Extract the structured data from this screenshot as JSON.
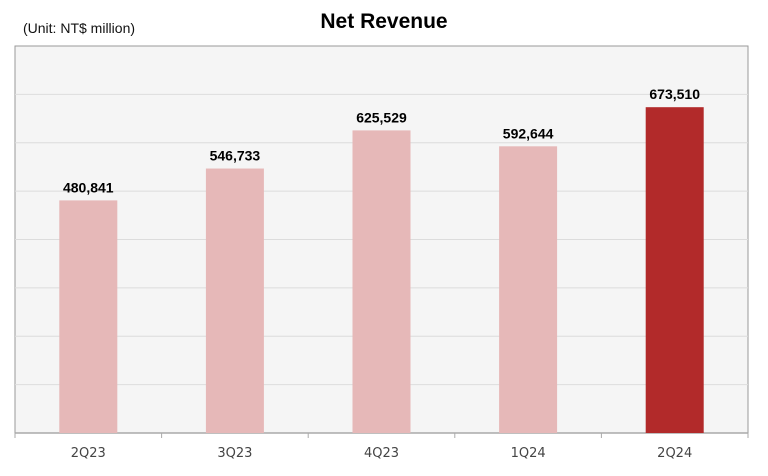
{
  "chart_data": {
    "type": "bar",
    "title": "Net Revenue",
    "unit_note": "(Unit: NT$ million)",
    "categories": [
      "2Q23",
      "3Q23",
      "4Q23",
      "1Q24",
      "2Q24"
    ],
    "values": [
      480841,
      546733,
      625529,
      592644,
      673510
    ],
    "data_labels": [
      "480,841",
      "546,733",
      "625,529",
      "592,644",
      "673,510"
    ],
    "ylim": [
      0,
      800000
    ],
    "grid": true,
    "y_tick_labels_shown": false,
    "colors": {
      "bar": "#e6b8b8",
      "highlight_bar": "#b22a2a",
      "plot_bg": "#f5f5f5",
      "grid": "#dcdcdc"
    },
    "highlight_index": 4
  }
}
